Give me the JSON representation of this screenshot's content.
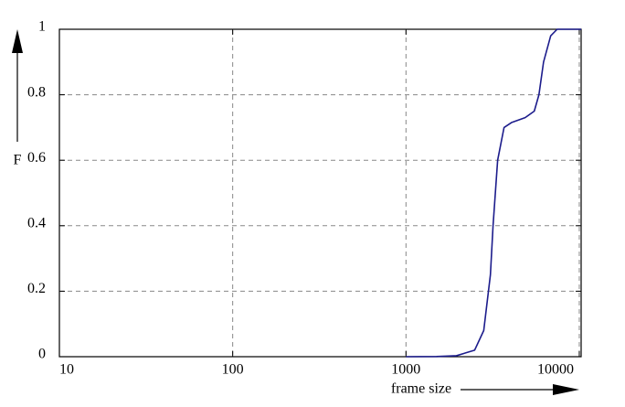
{
  "chart_data": {
    "type": "line",
    "x_label": "frame size",
    "y_label": "F",
    "xscale": "log",
    "xlim": [
      10,
      10250
    ],
    "ylim": [
      0,
      1
    ],
    "xticks": [
      10,
      100,
      1000,
      10000
    ],
    "yticks": [
      0,
      0.2,
      0.4,
      0.6,
      0.8,
      1
    ],
    "grid": true,
    "series": [
      {
        "color": "#1c1c8c",
        "x": [
          1000,
          1500,
          1954,
          2490,
          2810,
          3070,
          3180,
          3380,
          3680,
          4060,
          4870,
          5500,
          5850,
          6220,
          6840,
          7450,
          10250
        ],
        "values": [
          0,
          0.0005,
          0.003,
          0.02,
          0.08,
          0.25,
          0.4,
          0.6,
          0.7,
          0.715,
          0.73,
          0.75,
          0.8,
          0.9,
          0.98,
          1,
          1
        ]
      }
    ]
  }
}
